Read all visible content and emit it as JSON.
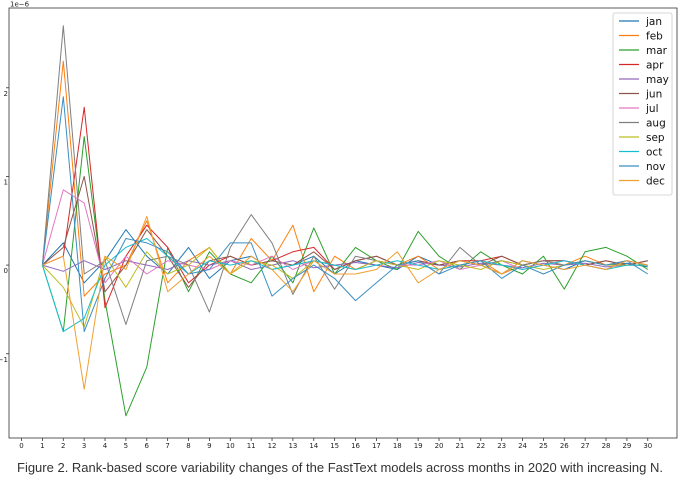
{
  "caption": "Figure 2. Rank-based score variability changes of the FastText models across months in 2020 with increasing N.",
  "chart_data": {
    "type": "line",
    "title": "",
    "xlabel": "",
    "ylabel": "",
    "y_offset_label": "1e−6",
    "x": [
      1,
      2,
      3,
      4,
      5,
      6,
      7,
      8,
      9,
      10,
      11,
      12,
      13,
      14,
      15,
      16,
      17,
      18,
      19,
      20,
      21,
      22,
      23,
      24,
      25,
      26,
      27,
      28,
      29,
      30
    ],
    "xticks": [
      0,
      1,
      2,
      3,
      4,
      5,
      6,
      7,
      8,
      9,
      10,
      11,
      12,
      13,
      14,
      15,
      16,
      17,
      18,
      19,
      20,
      21,
      22,
      23,
      24,
      25,
      26,
      27,
      28,
      29,
      30
    ],
    "yticks": [
      -1,
      0,
      1,
      2
    ],
    "xlim": [
      -0.6,
      31.4
    ],
    "ylim": [
      -1.95,
      2.9
    ],
    "grid": false,
    "legend_position": "top-right",
    "series": [
      {
        "name": "jan",
        "color": "#1f77b4",
        "values": [
          0,
          0.25,
          -0.2,
          0.05,
          0.4,
          0.1,
          -0.1,
          0.2,
          -0.15,
          0.05,
          0.1,
          -0.05,
          0.0,
          0.1,
          -0.1,
          0.05,
          0.0,
          -0.05,
          0.1,
          0.0,
          0.05,
          0.0,
          -0.1,
          0.05,
          0.0,
          -0.05,
          0.05,
          0.0,
          0.02,
          -0.02
        ]
      },
      {
        "name": "feb",
        "color": "#ff7f0e",
        "values": [
          0,
          2.3,
          -0.35,
          -0.1,
          0.0,
          0.5,
          -0.2,
          0.05,
          0.2,
          -0.1,
          0.3,
          0.05,
          0.45,
          -0.3,
          0.1,
          -0.05,
          0.05,
          0.0,
          0.1,
          -0.05,
          0.0,
          0.05,
          -0.1,
          0.0,
          0.05,
          0.0,
          0.1,
          0.0,
          0.05,
          0.0
        ]
      },
      {
        "name": "mar",
        "color": "#2ca02c",
        "values": [
          0,
          -0.75,
          1.45,
          -0.4,
          -1.7,
          -1.15,
          0.2,
          -0.3,
          0.15,
          -0.1,
          -0.2,
          0.1,
          -0.2,
          0.42,
          -0.1,
          0.2,
          0.05,
          -0.05,
          0.38,
          0.1,
          -0.05,
          0.15,
          0.0,
          -0.1,
          0.1,
          -0.27,
          0.15,
          0.2,
          0.1,
          -0.05
        ]
      },
      {
        "name": "apr",
        "color": "#d62728",
        "values": [
          0,
          0.1,
          1.78,
          -0.48,
          0.1,
          0.45,
          0.2,
          -0.2,
          0.0,
          0.1,
          0.0,
          0.05,
          0.15,
          0.2,
          -0.05,
          0.05,
          0.1,
          0.0,
          0.05,
          0.0,
          0.05,
          0.05,
          0.1,
          0.0,
          0.05,
          0.05,
          0.0,
          0.05,
          0.0,
          0.05
        ]
      },
      {
        "name": "may",
        "color": "#9467bd",
        "values": [
          0,
          -0.07,
          0.05,
          -0.05,
          0.05,
          0.0,
          -0.05,
          0.05,
          0.0,
          0.05,
          -0.05,
          0.0,
          0.05,
          -0.03,
          0.0,
          0.03,
          0.0,
          -0.03,
          0.03,
          0.0,
          -0.02,
          0.02,
          0.0,
          -0.03,
          0.02,
          0.0,
          0.02,
          -0.02,
          0.0,
          0.0
        ]
      },
      {
        "name": "jun",
        "color": "#8c564b",
        "values": [
          0,
          0.2,
          1.0,
          -0.3,
          0.0,
          0.4,
          0.1,
          -0.25,
          0.05,
          0.1,
          0.0,
          0.05,
          0.0,
          0.15,
          -0.05,
          0.05,
          0.1,
          0.0,
          0.05,
          0.0,
          0.05,
          0.0,
          0.1,
          0.0,
          0.05,
          0.05,
          0.0,
          0.05,
          0.0,
          0.05
        ]
      },
      {
        "name": "jul",
        "color": "#e377c2",
        "values": [
          0,
          0.85,
          0.7,
          -0.2,
          0.1,
          -0.1,
          0.05,
          0.0,
          -0.05,
          0.05,
          0.0,
          0.1,
          -0.05,
          0.05,
          0.0,
          -0.05,
          0.05,
          0.0,
          0.0,
          0.05,
          -0.05,
          0.0,
          0.05,
          -0.05,
          0.0,
          0.05,
          0.0,
          -0.05,
          0.05,
          0.0
        ]
      },
      {
        "name": "aug",
        "color": "#7f7f7f",
        "values": [
          0,
          2.7,
          -0.1,
          0.05,
          -0.67,
          0.05,
          0.1,
          0.0,
          -0.53,
          0.2,
          0.57,
          0.25,
          -0.33,
          0.1,
          -0.27,
          0.1,
          0.05,
          0.0,
          0.05,
          -0.1,
          0.2,
          0.0,
          0.05,
          0.0,
          0.05,
          0.0,
          0.05,
          0.0,
          0.05,
          0.0
        ]
      },
      {
        "name": "sep",
        "color": "#bcbd22",
        "values": [
          0,
          -0.25,
          -0.7,
          0.1,
          -0.25,
          0.15,
          -0.1,
          0.0,
          0.2,
          -0.1,
          0.05,
          0.0,
          -0.15,
          0.05,
          0.0,
          -0.05,
          0.05,
          0.0,
          -0.05,
          0.05,
          0.0,
          -0.05,
          0.05,
          0.0,
          -0.05,
          0.0,
          0.05,
          0.0,
          0.0,
          0.0
        ]
      },
      {
        "name": "oct",
        "color": "#17becf",
        "values": [
          0,
          -0.75,
          -0.6,
          0.0,
          0.2,
          0.3,
          0.1,
          -0.1,
          0.05,
          0.0,
          0.05,
          -0.05,
          0.0,
          0.05,
          0.0,
          -0.05,
          0.0,
          0.05,
          0.0,
          -0.05,
          0.0,
          0.05,
          0.0,
          -0.05,
          0.0,
          0.05,
          0.0,
          -0.05,
          0.0,
          0.0
        ]
      },
      {
        "name": "nov",
        "color": "#3a8fc4",
        "values": [
          0,
          1.9,
          -0.75,
          -0.15,
          0.3,
          0.25,
          0.15,
          -0.1,
          -0.05,
          0.25,
          0.25,
          -0.35,
          -0.15,
          0.0,
          -0.15,
          -0.4,
          -0.2,
          0.0,
          0.05,
          -0.1,
          0.0,
          0.05,
          -0.15,
          0.0,
          -0.1,
          0.0,
          0.05,
          0.0,
          0.05,
          -0.1
        ]
      },
      {
        "name": "dec",
        "color": "#f0a030",
        "values": [
          0,
          0.1,
          -1.4,
          0.1,
          -0.05,
          0.55,
          -0.3,
          -0.1,
          0.1,
          -0.1,
          0.1,
          -0.05,
          -0.3,
          0.05,
          -0.1,
          -0.1,
          -0.05,
          0.15,
          -0.2,
          -0.05,
          0.05,
          0.0,
          -0.1,
          0.05,
          0.0,
          -0.05,
          0.0,
          -0.05,
          0.05,
          0.0
        ]
      }
    ]
  }
}
